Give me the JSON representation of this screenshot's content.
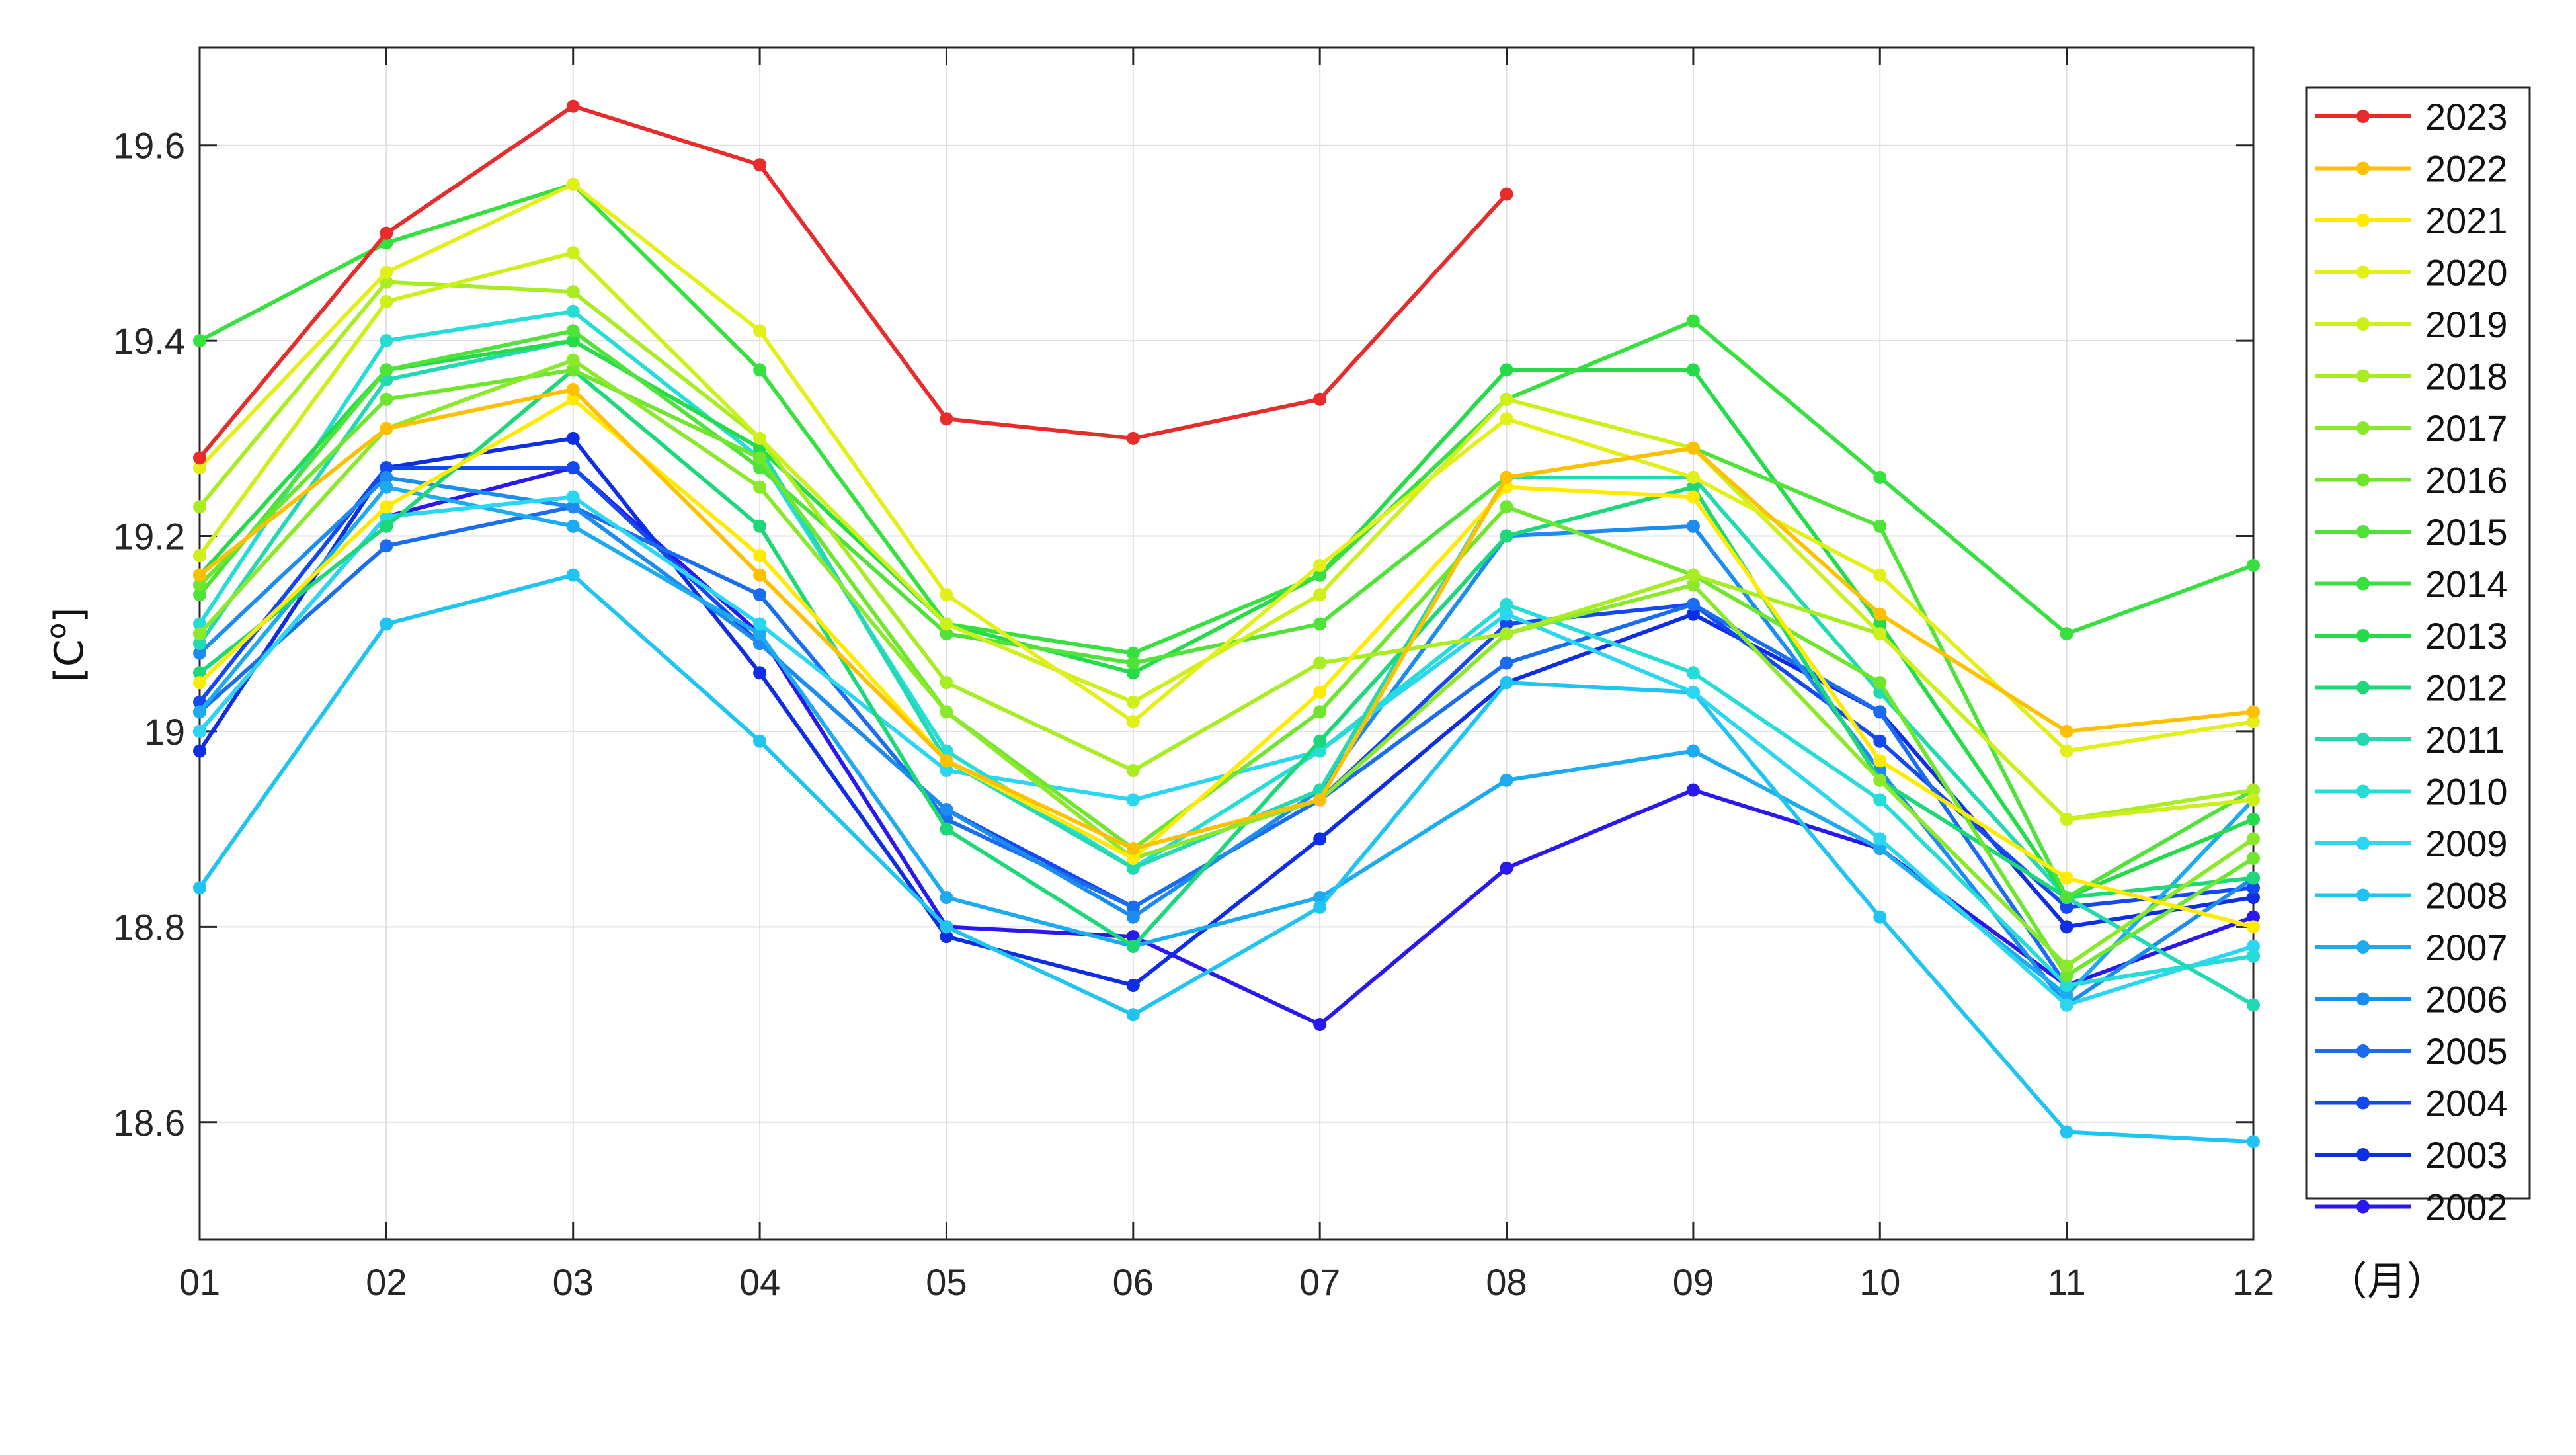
{
  "chart_data": {
    "type": "line",
    "title": "",
    "xlabel": "",
    "x_unit_label": "（月）",
    "ylabel": "[C°]",
    "ylabel_base": "[C",
    "ylabel_sup": "o",
    "ylabel_close": "]",
    "categories": [
      "01",
      "02",
      "03",
      "04",
      "05",
      "06",
      "07",
      "08",
      "09",
      "10",
      "11",
      "12"
    ],
    "ylim": [
      18.48,
      19.7
    ],
    "yticks": [
      18.6,
      18.8,
      19,
      19.2,
      19.4,
      19.6
    ],
    "ytick_labels": [
      "18.6",
      "18.8",
      "19",
      "19.2",
      "19.4",
      "19.6"
    ],
    "grid": true,
    "legend_position": "right",
    "series": [
      {
        "name": "2023",
        "color": "#e82c2c",
        "values": [
          19.28,
          19.51,
          19.64,
          19.58,
          19.32,
          19.3,
          19.34,
          19.55,
          null,
          null,
          null,
          null
        ]
      },
      {
        "name": "2022",
        "color": "#ffc000",
        "values": [
          19.16,
          19.31,
          19.35,
          19.16,
          18.97,
          18.88,
          18.93,
          19.26,
          19.29,
          19.12,
          19.0,
          19.02
        ]
      },
      {
        "name": "2021",
        "color": "#ffeb00",
        "values": [
          19.05,
          19.23,
          19.34,
          19.18,
          18.97,
          18.87,
          19.04,
          19.25,
          19.24,
          18.97,
          18.85,
          18.8
        ]
      },
      {
        "name": "2020",
        "color": "#e2ef18",
        "values": [
          19.27,
          19.47,
          19.56,
          19.41,
          19.14,
          19.01,
          19.17,
          19.32,
          19.26,
          19.16,
          18.98,
          19.01
        ]
      },
      {
        "name": "2019",
        "color": "#cdef1a",
        "values": [
          19.18,
          19.44,
          19.49,
          19.3,
          19.11,
          19.03,
          19.14,
          19.34,
          19.29,
          19.1,
          18.91,
          18.93
        ]
      },
      {
        "name": "2018",
        "color": "#a8ec22",
        "values": [
          19.23,
          19.46,
          19.45,
          19.3,
          19.05,
          18.96,
          19.07,
          19.1,
          19.16,
          19.1,
          18.91,
          18.94
        ]
      },
      {
        "name": "2017",
        "color": "#8ce82a",
        "values": [
          19.1,
          19.31,
          19.38,
          19.25,
          19.02,
          18.87,
          18.93,
          19.1,
          19.15,
          18.95,
          18.76,
          18.89
        ]
      },
      {
        "name": "2016",
        "color": "#6fe62e",
        "values": [
          19.15,
          19.34,
          19.37,
          19.28,
          19.02,
          18.88,
          19.02,
          19.23,
          19.16,
          19.05,
          18.75,
          18.87
        ]
      },
      {
        "name": "2015",
        "color": "#4fe33a",
        "values": [
          19.14,
          19.37,
          19.41,
          19.27,
          19.1,
          19.07,
          19.11,
          19.26,
          19.29,
          19.21,
          18.83,
          18.94
        ]
      },
      {
        "name": "2014",
        "color": "#36e03e",
        "values": [
          19.4,
          19.5,
          19.56,
          19.37,
          19.11,
          19.08,
          19.16,
          19.34,
          19.42,
          19.26,
          19.1,
          19.17
        ]
      },
      {
        "name": "2013",
        "color": "#23dc48",
        "values": [
          19.16,
          19.37,
          19.4,
          19.29,
          19.11,
          19.06,
          19.16,
          19.37,
          19.37,
          19.11,
          18.83,
          18.91
        ]
      },
      {
        "name": "2012",
        "color": "#1cd878",
        "values": [
          19.06,
          19.21,
          19.37,
          19.21,
          18.9,
          18.78,
          18.99,
          19.2,
          19.25,
          18.95,
          18.83,
          18.85
        ]
      },
      {
        "name": "2011",
        "color": "#22d9b2",
        "values": [
          19.09,
          19.36,
          19.4,
          19.29,
          18.97,
          18.86,
          18.94,
          19.26,
          19.26,
          19.04,
          18.83,
          18.72
        ]
      },
      {
        "name": "2010",
        "color": "#26dcd6",
        "values": [
          19.11,
          19.4,
          19.43,
          19.28,
          18.98,
          18.86,
          18.98,
          19.13,
          19.06,
          18.93,
          18.74,
          18.77
        ]
      },
      {
        "name": "2009",
        "color": "#2ad6f2",
        "values": [
          19.0,
          19.22,
          19.24,
          19.11,
          18.96,
          18.93,
          18.98,
          19.12,
          19.04,
          18.89,
          18.72,
          18.78
        ]
      },
      {
        "name": "2008",
        "color": "#20c4f2",
        "values": [
          18.84,
          19.11,
          19.16,
          18.99,
          18.8,
          18.71,
          18.82,
          19.05,
          19.04,
          18.81,
          18.59,
          18.58
        ]
      },
      {
        "name": "2007",
        "color": "#1caaf0",
        "values": [
          19.02,
          19.25,
          19.21,
          19.1,
          18.83,
          18.78,
          18.83,
          18.95,
          18.98,
          18.88,
          18.73,
          18.93
        ]
      },
      {
        "name": "2006",
        "color": "#1c8cf0",
        "values": [
          19.08,
          19.26,
          19.23,
          19.09,
          18.92,
          18.81,
          18.94,
          19.2,
          19.21,
          18.96,
          18.72,
          18.85
        ]
      },
      {
        "name": "2005",
        "color": "#1a6cf0",
        "values": [
          19.02,
          19.19,
          19.23,
          19.14,
          18.91,
          18.82,
          18.93,
          19.07,
          19.13,
          19.02,
          18.74,
          18.77
        ]
      },
      {
        "name": "2004",
        "color": "#1448f0",
        "values": [
          19.03,
          19.27,
          19.27,
          19.09,
          18.92,
          18.82,
          18.93,
          19.11,
          19.13,
          18.99,
          18.82,
          18.84
        ]
      },
      {
        "name": "2003",
        "color": "#0e2ee6",
        "values": [
          18.98,
          19.27,
          19.3,
          19.06,
          18.79,
          18.74,
          18.89,
          19.05,
          19.12,
          19.02,
          18.8,
          18.83
        ]
      },
      {
        "name": "2002",
        "color": "#2a18f0",
        "values": [
          19.0,
          19.22,
          19.27,
          19.1,
          18.8,
          18.79,
          18.7,
          18.86,
          18.94,
          18.88,
          18.74,
          18.81
        ]
      }
    ]
  }
}
